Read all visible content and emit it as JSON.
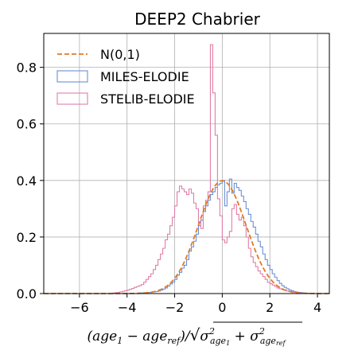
{
  "chart_data": {
    "type": "histogram",
    "title": "DEEP2 Chabrier",
    "xlabel": "(age₁ − age_ref)/√(σ²_age₁ + σ²_age_ref)",
    "xlabel_parts": {
      "open": "(",
      "age1": "age",
      "sub1": "1",
      "minus": " − ",
      "age2": "age",
      "sub2": "ref",
      "close": ")/",
      "sigma1": "σ",
      "sigma1_sup": "2",
      "sigma1_sub": "age",
      "sigma1_sub2": "1",
      "plus": " + ",
      "sigma2": "σ",
      "sigma2_sup": "2",
      "sigma2_sub": "age",
      "sigma2_sub2": "ref"
    },
    "xlim": [
      -7.5,
      4.5
    ],
    "ylim": [
      0,
      0.92
    ],
    "xticks": [
      -6,
      -4,
      -2,
      0,
      2,
      4
    ],
    "xtick_labels": [
      "−6",
      "−4",
      "−2",
      "0",
      "2",
      "4"
    ],
    "yticks": [
      0.0,
      0.2,
      0.4,
      0.6,
      0.8
    ],
    "ytick_labels": [
      "0.0",
      "0.2",
      "0.4",
      "0.6",
      "0.8"
    ],
    "grid": true,
    "legend_position": "top-left",
    "bin_width": 0.1,
    "series": [
      {
        "name": "N(0,1)",
        "style": "dashed-line",
        "color": "#e07b27",
        "function": "standard-normal-pdf",
        "x_range": [
          -7.5,
          4.5
        ]
      },
      {
        "name": "MILES-ELODIE",
        "style": "step",
        "color": "#6b8fd6",
        "bin_start": -7.5,
        "values": [
          0,
          0,
          0,
          0,
          0,
          0,
          0,
          0,
          0,
          0,
          0,
          0,
          0,
          0,
          0,
          0,
          0,
          0,
          0,
          0,
          0,
          0,
          0,
          0,
          0,
          0,
          0,
          0,
          0,
          0,
          0,
          0,
          0,
          0,
          0,
          0,
          0,
          0,
          0,
          0,
          0.002,
          0.002,
          0.003,
          0.003,
          0.004,
          0.005,
          0.006,
          0.007,
          0.009,
          0.012,
          0.016,
          0.02,
          0.026,
          0.034,
          0.04,
          0.05,
          0.065,
          0.075,
          0.09,
          0.1,
          0.12,
          0.15,
          0.165,
          0.185,
          0.21,
          0.24,
          0.26,
          0.29,
          0.31,
          0.33,
          0.35,
          0.36,
          0.375,
          0.385,
          0.39,
          0.4,
          0.31,
          0.36,
          0.405,
          0.355,
          0.39,
          0.375,
          0.365,
          0.345,
          0.325,
          0.3,
          0.28,
          0.255,
          0.235,
          0.21,
          0.185,
          0.165,
          0.14,
          0.12,
          0.1,
          0.085,
          0.07,
          0.058,
          0.046,
          0.036,
          0.028,
          0.022,
          0.017,
          0.013,
          0.01,
          0.007,
          0.005,
          0.004,
          0.003,
          0.002,
          0.001,
          0.001,
          0,
          0,
          0,
          0,
          0,
          0,
          0,
          0
        ]
      },
      {
        "name": "STELIB-ELODIE",
        "style": "step",
        "color": "#e27da8",
        "bin_start": -7.5,
        "values": [
          0,
          0,
          0,
          0,
          0,
          0,
          0,
          0,
          0,
          0,
          0,
          0,
          0,
          0,
          0,
          0,
          0,
          0,
          0,
          0,
          0,
          0,
          0,
          0,
          0,
          0,
          0,
          0,
          0,
          0.002,
          0.003,
          0.004,
          0.006,
          0.008,
          0.01,
          0.012,
          0.015,
          0.018,
          0.022,
          0.025,
          0.028,
          0.032,
          0.04,
          0.05,
          0.06,
          0.07,
          0.085,
          0.1,
          0.12,
          0.14,
          0.16,
          0.19,
          0.21,
          0.24,
          0.27,
          0.31,
          0.36,
          0.38,
          0.37,
          0.36,
          0.35,
          0.37,
          0.355,
          0.32,
          0.3,
          0.25,
          0.23,
          0.31,
          0.33,
          0.36,
          0.88,
          0.71,
          0.56,
          0.335,
          0.275,
          0.19,
          0.18,
          0.2,
          0.22,
          0.3,
          0.315,
          0.28,
          0.26,
          0.27,
          0.24,
          0.2,
          0.16,
          0.13,
          0.11,
          0.095,
          0.08,
          0.07,
          0.06,
          0.05,
          0.04,
          0.035,
          0.03,
          0.025,
          0.02,
          0.017,
          0.014,
          0.011,
          0.009,
          0.007,
          0.005,
          0.004,
          0.003,
          0.002,
          0.001,
          0.001,
          0,
          0,
          0,
          0,
          0,
          0,
          0,
          0,
          0,
          0
        ]
      }
    ]
  }
}
